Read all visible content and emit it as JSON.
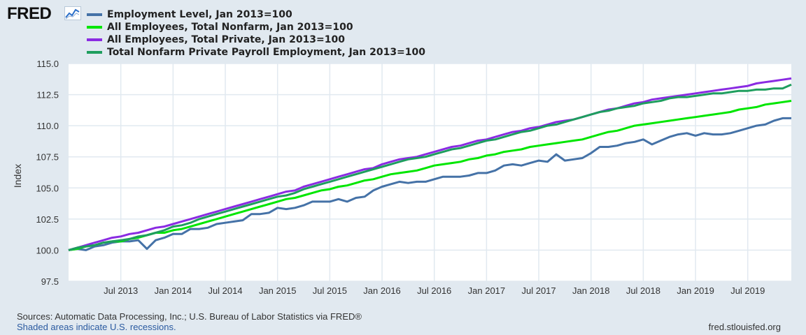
{
  "header": {
    "logo_text": "FRED",
    "logo_icon": "line-graph-icon"
  },
  "colors": {
    "page_bg": "#e1e9f0",
    "plot_bg": "#ffffff",
    "grid": "#e1e9f0",
    "axis_text": "#333333"
  },
  "chart_data": {
    "type": "line",
    "ylabel": "Index",
    "ylim": [
      97.5,
      115.0
    ],
    "yticks": [
      97.5,
      100.0,
      102.5,
      105.0,
      107.5,
      110.0,
      112.5,
      115.0
    ],
    "ytick_labels": [
      "97.5",
      "100.0",
      "102.5",
      "105.0",
      "107.5",
      "110.0",
      "112.5",
      "115.0"
    ],
    "x": [
      "2013-01",
      "2013-02",
      "2013-03",
      "2013-04",
      "2013-05",
      "2013-06",
      "2013-07",
      "2013-08",
      "2013-09",
      "2013-10",
      "2013-11",
      "2013-12",
      "2014-01",
      "2014-02",
      "2014-03",
      "2014-04",
      "2014-05",
      "2014-06",
      "2014-07",
      "2014-08",
      "2014-09",
      "2014-10",
      "2014-11",
      "2014-12",
      "2015-01",
      "2015-02",
      "2015-03",
      "2015-04",
      "2015-05",
      "2015-06",
      "2015-07",
      "2015-08",
      "2015-09",
      "2015-10",
      "2015-11",
      "2015-12",
      "2016-01",
      "2016-02",
      "2016-03",
      "2016-04",
      "2016-05",
      "2016-06",
      "2016-07",
      "2016-08",
      "2016-09",
      "2016-10",
      "2016-11",
      "2016-12",
      "2017-01",
      "2017-02",
      "2017-03",
      "2017-04",
      "2017-05",
      "2017-06",
      "2017-07",
      "2017-08",
      "2017-09",
      "2017-10",
      "2017-11",
      "2017-12",
      "2018-01",
      "2018-02",
      "2018-03",
      "2018-04",
      "2018-05",
      "2018-06",
      "2018-07",
      "2018-08",
      "2018-09",
      "2018-10",
      "2018-11",
      "2018-12",
      "2019-01",
      "2019-02",
      "2019-03",
      "2019-04",
      "2019-05",
      "2019-06",
      "2019-07",
      "2019-08",
      "2019-09",
      "2019-10",
      "2019-11",
      "2019-12"
    ],
    "xlim": [
      "2013-01",
      "2019-12"
    ],
    "xtick_labels": [
      {
        "date": "2013-07",
        "label": "Jul 2013"
      },
      {
        "date": "2014-01",
        "label": "Jan 2014"
      },
      {
        "date": "2014-07",
        "label": "Jul 2014"
      },
      {
        "date": "2015-01",
        "label": "Jan 2015"
      },
      {
        "date": "2015-07",
        "label": "Jul 2015"
      },
      {
        "date": "2016-01",
        "label": "Jan 2016"
      },
      {
        "date": "2016-07",
        "label": "Jul 2016"
      },
      {
        "date": "2017-01",
        "label": "Jan 2017"
      },
      {
        "date": "2017-07",
        "label": "Jul 2017"
      },
      {
        "date": "2018-01",
        "label": "Jan 2018"
      },
      {
        "date": "2018-07",
        "label": "Jul 2018"
      },
      {
        "date": "2019-01",
        "label": "Jan 2019"
      },
      {
        "date": "2019-07",
        "label": "Jul 2019"
      }
    ],
    "grid": true,
    "legend_position": "top-left",
    "series": [
      {
        "name": "Employment Level, Jan 2013=100",
        "color": "#4572a7",
        "values": [
          100.0,
          100.1,
          100.0,
          100.3,
          100.4,
          100.6,
          100.7,
          100.7,
          100.8,
          100.1,
          100.8,
          101.0,
          101.3,
          101.3,
          101.7,
          101.7,
          101.8,
          102.1,
          102.2,
          102.3,
          102.4,
          102.9,
          102.9,
          103.0,
          103.4,
          103.3,
          103.4,
          103.6,
          103.9,
          103.9,
          103.9,
          104.1,
          103.9,
          104.2,
          104.3,
          104.8,
          105.1,
          105.3,
          105.5,
          105.4,
          105.5,
          105.5,
          105.7,
          105.9,
          105.9,
          105.9,
          106.0,
          106.2,
          106.2,
          106.4,
          106.8,
          106.9,
          106.8,
          107.0,
          107.2,
          107.1,
          107.7,
          107.2,
          107.3,
          107.4,
          107.8,
          108.3,
          108.3,
          108.4,
          108.6,
          108.7,
          108.9,
          108.5,
          108.8,
          109.1,
          109.3,
          109.4,
          109.2,
          109.4,
          109.3,
          109.3,
          109.4,
          109.6,
          109.8,
          110.0,
          110.1,
          110.4,
          110.6,
          110.6
        ]
      },
      {
        "name": "All Employees, Total Nonfarm, Jan 2013=100",
        "color": "#00e600",
        "values": [
          100.0,
          100.1,
          100.3,
          100.4,
          100.6,
          100.7,
          100.7,
          100.9,
          101.0,
          101.2,
          101.4,
          101.4,
          101.6,
          101.7,
          101.9,
          102.1,
          102.3,
          102.5,
          102.7,
          102.9,
          103.1,
          103.3,
          103.5,
          103.7,
          103.9,
          104.1,
          104.2,
          104.4,
          104.6,
          104.8,
          104.9,
          105.1,
          105.2,
          105.4,
          105.6,
          105.7,
          105.9,
          106.1,
          106.2,
          106.3,
          106.4,
          106.6,
          106.8,
          106.9,
          107.0,
          107.1,
          107.3,
          107.4,
          107.6,
          107.7,
          107.9,
          108.0,
          108.1,
          108.3,
          108.4,
          108.5,
          108.6,
          108.7,
          108.8,
          108.9,
          109.1,
          109.3,
          109.5,
          109.6,
          109.8,
          110.0,
          110.1,
          110.2,
          110.3,
          110.4,
          110.5,
          110.6,
          110.7,
          110.8,
          110.9,
          111.0,
          111.1,
          111.3,
          111.4,
          111.5,
          111.7,
          111.8,
          111.9,
          112.0
        ]
      },
      {
        "name": "All Employees, Total Private, Jan 2013=100",
        "color": "#8a2be2",
        "values": [
          100.0,
          100.2,
          100.4,
          100.6,
          100.8,
          101.0,
          101.1,
          101.3,
          101.4,
          101.6,
          101.8,
          101.9,
          102.1,
          102.3,
          102.5,
          102.7,
          102.9,
          103.1,
          103.3,
          103.5,
          103.7,
          103.9,
          104.1,
          104.3,
          104.5,
          104.7,
          104.8,
          105.1,
          105.3,
          105.5,
          105.7,
          105.9,
          106.1,
          106.3,
          106.5,
          106.6,
          106.9,
          107.1,
          107.3,
          107.4,
          107.5,
          107.7,
          107.9,
          108.1,
          108.3,
          108.4,
          108.6,
          108.8,
          108.9,
          109.1,
          109.3,
          109.5,
          109.6,
          109.8,
          109.9,
          110.1,
          110.3,
          110.4,
          110.5,
          110.7,
          110.9,
          111.1,
          111.3,
          111.4,
          111.6,
          111.8,
          111.9,
          112.1,
          112.2,
          112.3,
          112.4,
          112.5,
          112.6,
          112.7,
          112.8,
          112.9,
          113.0,
          113.1,
          113.2,
          113.4,
          113.5,
          113.6,
          113.7,
          113.8
        ]
      },
      {
        "name": "Total Nonfarm Private Payroll Employment, Jan 2013=100",
        "color": "#1e9e5e",
        "values": [
          100.0,
          100.2,
          100.3,
          100.4,
          100.6,
          100.7,
          100.8,
          100.9,
          101.1,
          101.2,
          101.4,
          101.6,
          101.9,
          102.0,
          102.2,
          102.5,
          102.7,
          102.9,
          103.1,
          103.3,
          103.5,
          103.7,
          103.9,
          104.1,
          104.3,
          104.4,
          104.6,
          104.9,
          105.1,
          105.3,
          105.5,
          105.7,
          105.9,
          106.1,
          106.3,
          106.5,
          106.7,
          106.9,
          107.1,
          107.3,
          107.4,
          107.5,
          107.7,
          107.9,
          108.1,
          108.2,
          108.4,
          108.6,
          108.8,
          108.9,
          109.1,
          109.3,
          109.5,
          109.6,
          109.8,
          110.0,
          110.1,
          110.3,
          110.5,
          110.7,
          110.9,
          111.1,
          111.2,
          111.4,
          111.5,
          111.6,
          111.8,
          111.9,
          112.0,
          112.2,
          112.3,
          112.3,
          112.4,
          112.5,
          112.6,
          112.6,
          112.7,
          112.8,
          112.8,
          112.9,
          112.9,
          113.0,
          113.0,
          113.3
        ]
      }
    ]
  },
  "footer": {
    "source_text": "Sources: Automatic Data Processing, Inc.; U.S. Bureau of Labor Statistics via FRED®",
    "recession_note": "Shaded areas indicate U.S. recessions.",
    "url_text": "fred.stlouisfed.org"
  }
}
